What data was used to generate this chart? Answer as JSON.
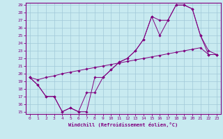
{
  "xlabel": "Windchill (Refroidissement éolien,°C)",
  "bg_color": "#c8eaf0",
  "line_color": "#800080",
  "grid_color": "#a0c8d8",
  "xlim": [
    -0.5,
    23.5
  ],
  "ylim": [
    14.7,
    29.3
  ],
  "yticks": [
    15,
    16,
    17,
    18,
    19,
    20,
    21,
    22,
    23,
    24,
    25,
    26,
    27,
    28,
    29
  ],
  "xticks": [
    0,
    1,
    2,
    3,
    4,
    5,
    6,
    7,
    8,
    9,
    10,
    11,
    12,
    13,
    14,
    15,
    16,
    17,
    18,
    19,
    20,
    21,
    22,
    23
  ],
  "line1_x": [
    0,
    1,
    2,
    3,
    4,
    5,
    6,
    7,
    8,
    9,
    10,
    11,
    12,
    13,
    14,
    15,
    16,
    17,
    18,
    19,
    20,
    21,
    22,
    23
  ],
  "line1_y": [
    19.5,
    18.5,
    17.0,
    17.0,
    15.0,
    15.5,
    15.0,
    15.0,
    19.5,
    19.5,
    20.5,
    21.5,
    22.0,
    23.0,
    24.5,
    27.5,
    25.0,
    27.0,
    29.0,
    29.0,
    28.5,
    25.0,
    23.0,
    22.5
  ],
  "line2_x": [
    0,
    1,
    2,
    3,
    4,
    5,
    6,
    7,
    8,
    9,
    10,
    11,
    12,
    13,
    14,
    15,
    16,
    17,
    18,
    19,
    20,
    21,
    22,
    23
  ],
  "line2_y": [
    19.5,
    18.5,
    17.0,
    17.0,
    15.0,
    15.5,
    15.0,
    17.5,
    17.5,
    19.5,
    20.5,
    21.5,
    22.0,
    23.0,
    24.5,
    27.5,
    27.0,
    27.0,
    29.0,
    29.0,
    28.5,
    25.0,
    22.5,
    22.5
  ],
  "line3_x": [
    0,
    1,
    2,
    3,
    4,
    5,
    6,
    7,
    8,
    9,
    10,
    11,
    12,
    13,
    14,
    15,
    16,
    17,
    18,
    19,
    20,
    21,
    22,
    23
  ],
  "line3_y": [
    19.5,
    19.2,
    19.5,
    19.7,
    20.0,
    20.2,
    20.4,
    20.6,
    20.8,
    21.0,
    21.2,
    21.4,
    21.6,
    21.8,
    22.0,
    22.2,
    22.4,
    22.6,
    22.8,
    23.0,
    23.2,
    23.4,
    22.5,
    22.5
  ]
}
